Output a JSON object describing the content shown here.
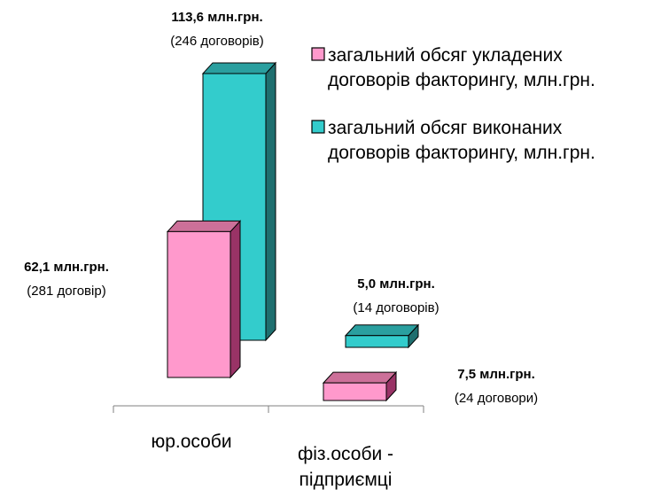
{
  "chart_data": {
    "type": "bar",
    "categories": [
      "юр.особи",
      "фіз.особи - підприємці"
    ],
    "series": [
      {
        "name": "загальний обсяг укладених договорів факторингу, млн.грн.",
        "values": [
          62.1,
          7.5
        ],
        "value_labels": [
          "62,1 млн.грн.",
          "7,5 млн.грн."
        ],
        "count_labels": [
          "(281 договір)",
          "(24 договори)"
        ],
        "color": "#ff99cc"
      },
      {
        "name": "загальний обсяг виконаних договорів факторингу, млн.грн.",
        "values": [
          113.6,
          5.0
        ],
        "value_labels": [
          "113,6 млн.грн.",
          "5,0 млн.грн."
        ],
        "count_labels": [
          "(246 договорів)",
          "(14 договорів)"
        ],
        "color": "#33cccc"
      }
    ],
    "legend": {
      "placement": "top-right",
      "items": [
        {
          "lines": [
            "загальний обсяг укладених",
            "договорів факторингу, млн.грн."
          ]
        },
        {
          "lines": [
            "загальний обсяг виконаних",
            "договорів факторингу, млн.грн."
          ]
        }
      ]
    },
    "category_lines": [
      [
        "юр.особи"
      ],
      [
        "фіз.особи -",
        "підприємці"
      ]
    ],
    "three_d": true,
    "grid": false
  },
  "colors": {
    "pink_front": "#ff99cc",
    "pink_top": "#cc7099",
    "pink_side": "#993366",
    "teal_front": "#33cccc",
    "teal_top": "#2a9f9f",
    "teal_side": "#1f6f6f",
    "axis": "#808080"
  }
}
